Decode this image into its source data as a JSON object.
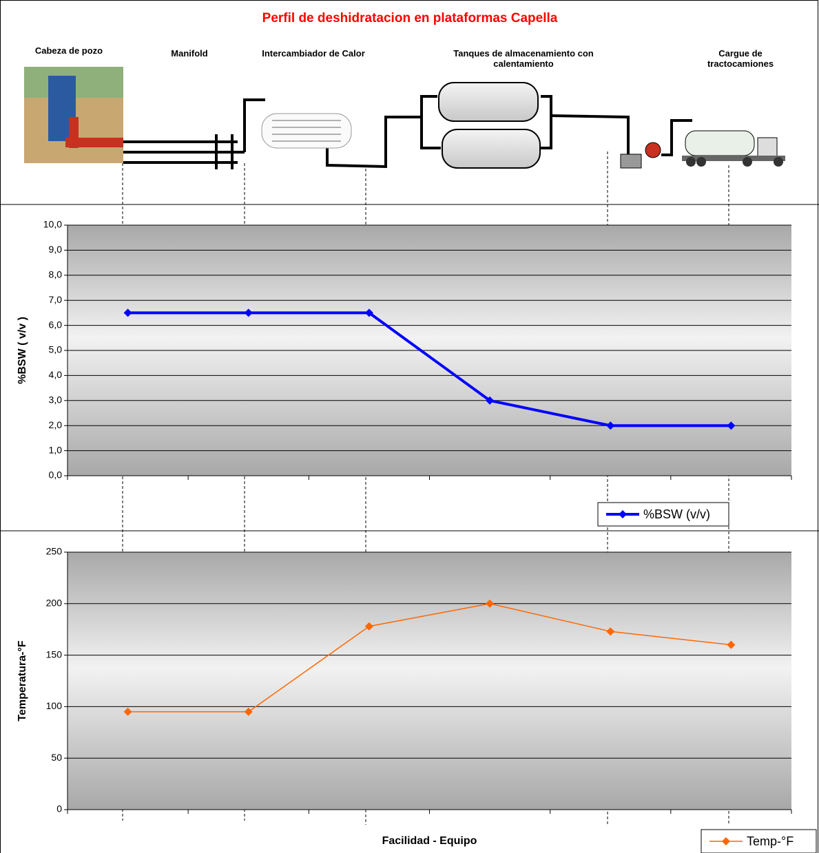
{
  "title": "Perfil de deshidratacion en plataformas Capella",
  "stages": [
    "Cabeza de pozo",
    "Manifold",
    "Intercambiador de Calor",
    "Tanques de almacenamiento con calentamiento",
    "Cargue de tractocamiones"
  ],
  "chart_data": [
    {
      "type": "line",
      "ylabel": "%BSW  ( v/v )",
      "categories": [
        null,
        null,
        null,
        null,
        null,
        null
      ],
      "series": [
        {
          "name": "%BSW (v/v)",
          "color": "#0000ff",
          "values": [
            6.5,
            6.5,
            6.5,
            3.0,
            2.0,
            2.0
          ]
        }
      ],
      "ylim": [
        0,
        10
      ],
      "yticks": [
        {
          "value": 0,
          "label": "0,0"
        },
        {
          "value": 1,
          "label": "1,0"
        },
        {
          "value": 2,
          "label": "2,0"
        },
        {
          "value": 3,
          "label": "3,0"
        },
        {
          "value": 4,
          "label": "4,0"
        },
        {
          "value": 5,
          "label": "5,0"
        },
        {
          "value": 6,
          "label": "6,0"
        },
        {
          "value": 7,
          "label": "7,0"
        },
        {
          "value": 8,
          "label": "8,0"
        },
        {
          "value": 9,
          "label": "9,0"
        },
        {
          "value": 10,
          "label": "10,0"
        }
      ],
      "grid": true,
      "legend": "bottom-right"
    },
    {
      "type": "line",
      "ylabel": "Temperatura-°F",
      "xlabel": "Facilidad - Equipo",
      "categories": [
        null,
        null,
        null,
        null,
        null,
        null
      ],
      "series": [
        {
          "name": "Temp-°F",
          "color": "#ff6600",
          "values": [
            95,
            95,
            178,
            200,
            173,
            160
          ]
        }
      ],
      "ylim": [
        0,
        250
      ],
      "yticks": [
        0,
        50,
        100,
        150,
        200,
        250
      ],
      "grid": true,
      "legend": "bottom-right"
    }
  ]
}
